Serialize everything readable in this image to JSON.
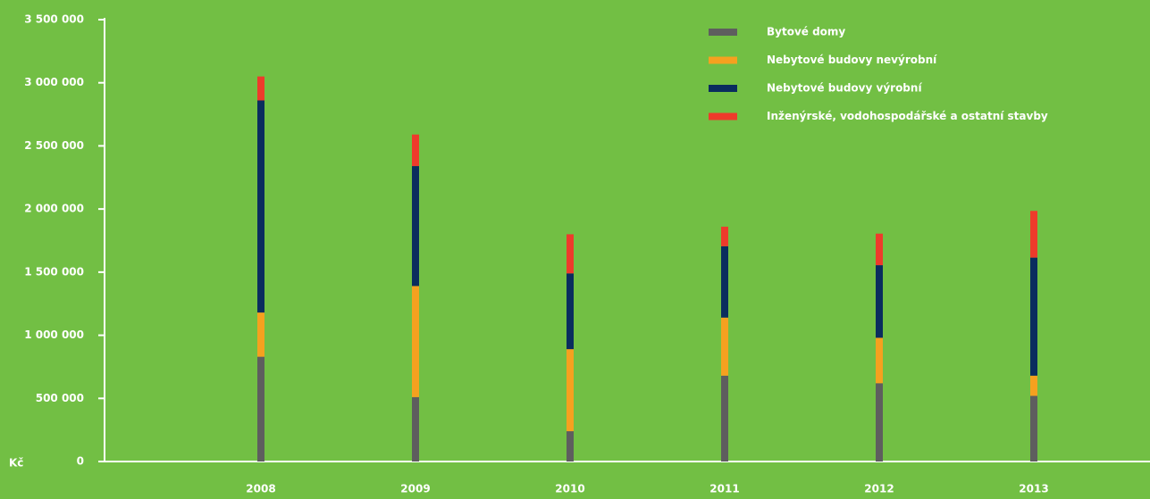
{
  "chart_data": {
    "type": "stacked_bar",
    "y_label": "Kč",
    "categories": [
      "2008",
      "2009",
      "2010",
      "2011",
      "2012",
      "2013"
    ],
    "series": [
      {
        "name": "Bytové domy",
        "color": "#5e5e5e",
        "values": [
          830000,
          510000,
          240000,
          680000,
          620000,
          520000
        ]
      },
      {
        "name": "Nebytové budovy nevýrobní",
        "color": "#f5a11f",
        "values": [
          350000,
          880000,
          650000,
          460000,
          360000,
          160000
        ]
      },
      {
        "name": "Nebytové budovy výrobní",
        "color": "#0a2d5e",
        "values": [
          1680000,
          950000,
          600000,
          565000,
          575000,
          935000
        ]
      },
      {
        "name": "Inženýrské, vodohospodářské a ostatní stavby",
        "color": "#ee3b2b",
        "values": [
          190000,
          250000,
          310000,
          155000,
          250000,
          370000
        ]
      }
    ],
    "ylim": [
      0,
      3500000
    ],
    "yticks": [
      0,
      {
        "value": 500000,
        "label": "500 000"
      },
      {
        "value": 1000000,
        "label": "1 000 000"
      },
      {
        "value": 1500000,
        "label": "1 500 000"
      },
      {
        "value": 2000000,
        "label": "2 000 000"
      },
      {
        "value": 2500000,
        "label": "2 500 000"
      },
      {
        "value": 3000000,
        "label": "3 000 000"
      },
      {
        "value": 3500000,
        "label": "3 500 000"
      }
    ],
    "legend": "top-right"
  }
}
